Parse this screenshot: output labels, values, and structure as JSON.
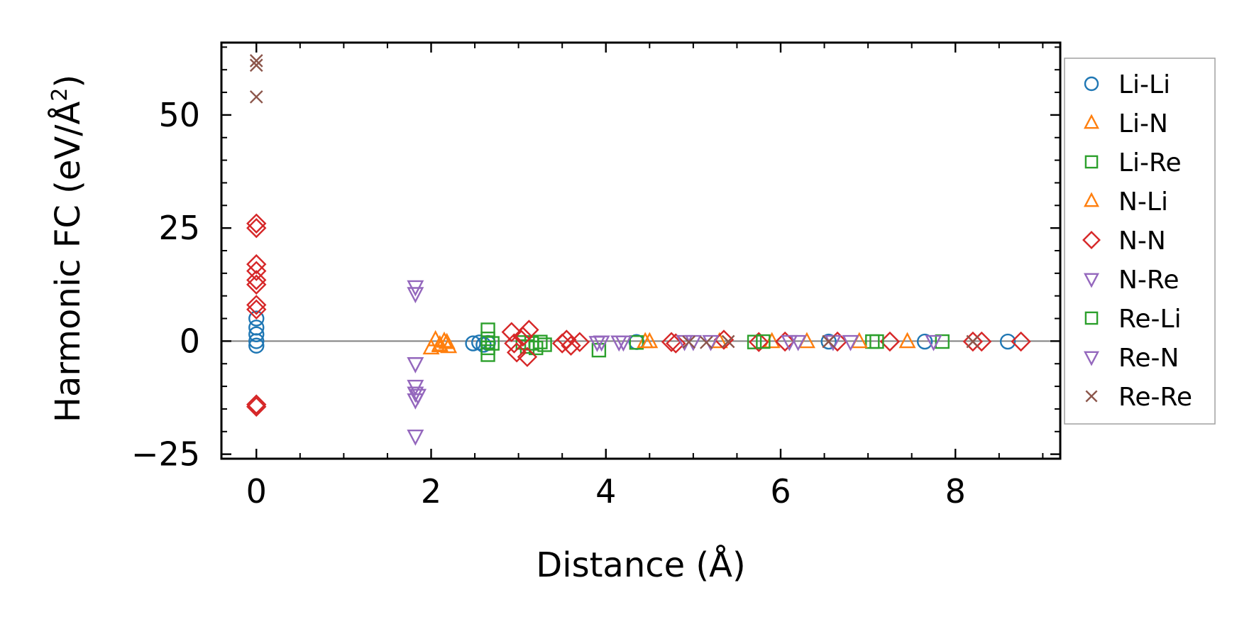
{
  "chart_data": {
    "type": "scatter",
    "xlabel": "Distance (Å)",
    "ylabel": "Harmonic FC (eV/Å",
    "ylabel_superscript": "2",
    "ylabel_suffix": ")",
    "xlim": [
      -0.4,
      9.2
    ],
    "ylim": [
      -26,
      66
    ],
    "xticks": [
      0,
      2,
      4,
      6,
      8
    ],
    "xtick_labels": [
      "0",
      "2",
      "4",
      "6",
      "8"
    ],
    "yticks": [
      -25,
      0,
      25,
      50
    ],
    "ytick_labels": [
      "−25",
      "0",
      "25",
      "50"
    ],
    "zero_line": true,
    "grid": false,
    "legend_position": "outside-right",
    "series": [
      {
        "name": "Li-Li",
        "marker": "circle",
        "color": "#1f77b4",
        "points": [
          [
            0,
            5
          ],
          [
            0,
            3
          ],
          [
            0,
            1.5
          ],
          [
            0,
            0
          ],
          [
            0,
            -1
          ],
          [
            2.48,
            -0.5
          ],
          [
            2.55,
            -0.3
          ],
          [
            2.6,
            -0.8
          ],
          [
            2.65,
            -0.4
          ],
          [
            4.35,
            -0.2
          ],
          [
            6.55,
            -0.1
          ],
          [
            7.65,
            -0.1
          ],
          [
            8.6,
            -0.1
          ]
        ]
      },
      {
        "name": "Li-N",
        "marker": "triangle-up",
        "color": "#ff7f0e",
        "points": [
          [
            2.0,
            -1.5
          ],
          [
            2.05,
            0.3
          ],
          [
            2.1,
            -1.0
          ],
          [
            2.15,
            0.0
          ],
          [
            2.2,
            -1.2
          ],
          [
            4.45,
            -0.1
          ],
          [
            5.3,
            -0.1
          ],
          [
            6.3,
            -0.1
          ],
          [
            7.45,
            -0.1
          ]
        ]
      },
      {
        "name": "Li-Re",
        "marker": "square",
        "color": "#2ca02c",
        "points": [
          [
            2.65,
            2.5
          ],
          [
            2.65,
            0.5
          ],
          [
            2.65,
            -1.5
          ],
          [
            2.65,
            -3.0
          ],
          [
            3.05,
            -0.3
          ],
          [
            3.1,
            -1.2
          ],
          [
            3.15,
            -0.5
          ],
          [
            3.2,
            -1.5
          ],
          [
            3.3,
            -0.8
          ],
          [
            3.92,
            -2.0
          ],
          [
            4.35,
            -0.3
          ],
          [
            5.7,
            -0.2
          ],
          [
            7.05,
            -0.1
          ],
          [
            7.85,
            -0.1
          ]
        ]
      },
      {
        "name": "N-Li",
        "marker": "triangle-up",
        "color": "#ff7f0e",
        "points": [
          [
            2.1,
            -0.8
          ],
          [
            2.18,
            -0.3
          ],
          [
            4.5,
            -0.1
          ],
          [
            5.9,
            -0.1
          ],
          [
            6.9,
            -0.1
          ]
        ]
      },
      {
        "name": "N-N",
        "marker": "diamond",
        "color": "#d62728",
        "points": [
          [
            0,
            26
          ],
          [
            0,
            25
          ],
          [
            0,
            17
          ],
          [
            0,
            15.5
          ],
          [
            0,
            13.5
          ],
          [
            0,
            12.5
          ],
          [
            0,
            8
          ],
          [
            0,
            7
          ],
          [
            0,
            -14
          ],
          [
            0,
            -14.5
          ],
          [
            2.92,
            2.0
          ],
          [
            2.95,
            -0.5
          ],
          [
            2.98,
            -2.5
          ],
          [
            3.05,
            1.0
          ],
          [
            3.1,
            -3.5
          ],
          [
            3.12,
            2.5
          ],
          [
            3.5,
            -0.5
          ],
          [
            3.55,
            0.3
          ],
          [
            3.6,
            -1.0
          ],
          [
            3.7,
            -0.2
          ],
          [
            4.75,
            -0.2
          ],
          [
            4.8,
            -0.5
          ],
          [
            5.35,
            0.3
          ],
          [
            5.75,
            -0.2
          ],
          [
            6.05,
            -0.1
          ],
          [
            6.65,
            -0.1
          ],
          [
            7.25,
            -0.1
          ],
          [
            8.2,
            -0.1
          ],
          [
            8.3,
            -0.1
          ],
          [
            8.75,
            -0.1
          ]
        ]
      },
      {
        "name": "N-Re",
        "marker": "triangle-down",
        "color": "#9467bd",
        "points": [
          [
            1.82,
            12
          ],
          [
            1.82,
            10.5
          ],
          [
            1.82,
            -5
          ],
          [
            1.82,
            -10
          ],
          [
            1.82,
            -11.5
          ],
          [
            1.82,
            -13
          ],
          [
            1.82,
            -21
          ],
          [
            3.95,
            -0.2
          ],
          [
            4.2,
            -0.2
          ],
          [
            4.9,
            -0.1
          ],
          [
            5.2,
            -0.1
          ],
          [
            6.1,
            -0.1
          ],
          [
            6.6,
            -0.1
          ],
          [
            7.75,
            -0.1
          ]
        ]
      },
      {
        "name": "Re-Li",
        "marker": "square",
        "color": "#2ca02c",
        "points": [
          [
            2.7,
            -0.5
          ],
          [
            3.25,
            -0.2
          ],
          [
            5.8,
            -0.1
          ],
          [
            7.1,
            -0.1
          ]
        ]
      },
      {
        "name": "Re-N",
        "marker": "triangle-down",
        "color": "#9467bd",
        "points": [
          [
            1.85,
            -12
          ],
          [
            3.9,
            -0.3
          ],
          [
            4.15,
            -0.2
          ],
          [
            5.0,
            -0.1
          ],
          [
            6.2,
            -0.1
          ],
          [
            6.8,
            -0.1
          ]
        ]
      },
      {
        "name": "Re-Re",
        "marker": "x",
        "color": "#8c564b",
        "points": [
          [
            0,
            62
          ],
          [
            0,
            61
          ],
          [
            0,
            54
          ],
          [
            4.95,
            -0.2
          ],
          [
            5.15,
            -0.3
          ],
          [
            5.4,
            -0.1
          ],
          [
            6.55,
            -0.1
          ],
          [
            8.2,
            -0.1
          ]
        ]
      }
    ]
  }
}
